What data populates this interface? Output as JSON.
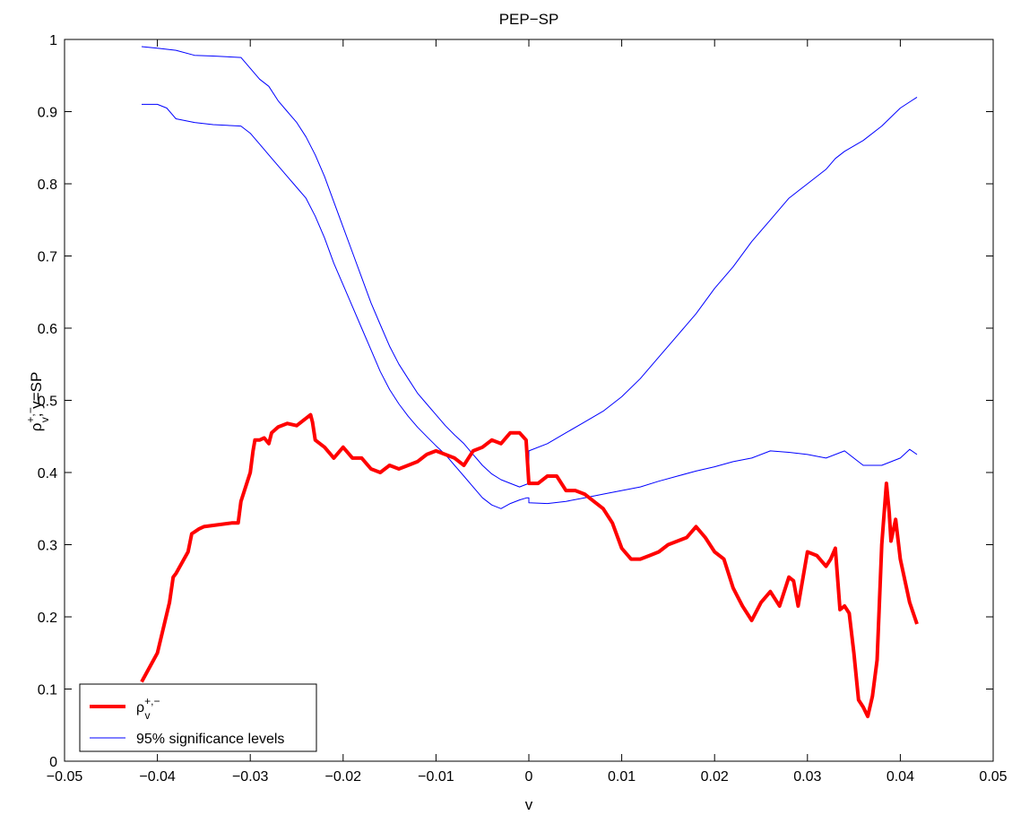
{
  "chart_data": {
    "type": "line",
    "title": "PEP−SP",
    "xlabel": "v",
    "ylabel": "ρv+,−, y=SP",
    "xlim": [
      -0.05,
      0.05
    ],
    "ylim": [
      0,
      1
    ],
    "xticks": [
      -0.05,
      -0.04,
      -0.03,
      -0.02,
      -0.01,
      0,
      0.01,
      0.02,
      0.03,
      0.04,
      0.05
    ],
    "xtick_labels": [
      "−0.05",
      "−0.04",
      "−0.03",
      "−0.02",
      "−0.01",
      "0",
      "0.01",
      "0.02",
      "0.03",
      "0.04",
      "0.05"
    ],
    "yticks": [
      0,
      0.1,
      0.2,
      0.3,
      0.4,
      0.5,
      0.6,
      0.7,
      0.8,
      0.9,
      1
    ],
    "ytick_labels": [
      "0",
      "0.1",
      "0.2",
      "0.3",
      "0.4",
      "0.5",
      "0.6",
      "0.7",
      "0.8",
      "0.9",
      "1"
    ],
    "grid": false,
    "legend_position": "bottom-left",
    "legend": [
      {
        "label": "ρv+,−",
        "color": "#ff0000",
        "style": "thick"
      },
      {
        "label": "95% significance levels",
        "color": "#0000ff",
        "style": "thin"
      }
    ],
    "series": [
      {
        "name": "ρv+,−",
        "color": "#ff0000",
        "x": [
          -0.0417,
          -0.04,
          -0.0387,
          -0.0383,
          -0.038,
          -0.0367,
          -0.0363,
          -0.0355,
          -0.035,
          -0.032,
          -0.0313,
          -0.031,
          -0.03,
          -0.0297,
          -0.0295,
          -0.029,
          -0.0285,
          -0.028,
          -0.0277,
          -0.027,
          -0.026,
          -0.025,
          -0.024,
          -0.0235,
          -0.0233,
          -0.023,
          -0.022,
          -0.021,
          -0.02,
          -0.019,
          -0.018,
          -0.017,
          -0.016,
          -0.015,
          -0.014,
          -0.013,
          -0.012,
          -0.011,
          -0.01,
          -0.009,
          -0.008,
          -0.007,
          -0.006,
          -0.005,
          -0.004,
          -0.003,
          -0.002,
          -0.001,
          -0.0003,
          0,
          0.001,
          0.002,
          0.003,
          0.004,
          0.005,
          0.006,
          0.007,
          0.008,
          0.009,
          0.01,
          0.011,
          0.012,
          0.013,
          0.014,
          0.015,
          0.016,
          0.017,
          0.018,
          0.019,
          0.02,
          0.021,
          0.022,
          0.023,
          0.024,
          0.025,
          0.026,
          0.027,
          0.028,
          0.0285,
          0.029,
          0.03,
          0.031,
          0.032,
          0.0325,
          0.033,
          0.0335,
          0.034,
          0.0345,
          0.035,
          0.0355,
          0.036,
          0.0365,
          0.037,
          0.0375,
          0.038,
          0.0385,
          0.0388,
          0.039,
          0.0395,
          0.04,
          0.041,
          0.0418
        ],
        "y": [
          0.11,
          0.15,
          0.22,
          0.255,
          0.26,
          0.29,
          0.315,
          0.322,
          0.325,
          0.33,
          0.33,
          0.36,
          0.4,
          0.43,
          0.445,
          0.445,
          0.448,
          0.44,
          0.455,
          0.463,
          0.468,
          0.465,
          0.475,
          0.48,
          0.47,
          0.445,
          0.435,
          0.42,
          0.435,
          0.42,
          0.42,
          0.405,
          0.4,
          0.41,
          0.405,
          0.41,
          0.415,
          0.425,
          0.43,
          0.425,
          0.42,
          0.41,
          0.43,
          0.435,
          0.445,
          0.44,
          0.455,
          0.455,
          0.445,
          0.385,
          0.385,
          0.395,
          0.395,
          0.375,
          0.375,
          0.37,
          0.36,
          0.35,
          0.33,
          0.295,
          0.28,
          0.28,
          0.285,
          0.29,
          0.3,
          0.305,
          0.31,
          0.325,
          0.31,
          0.29,
          0.28,
          0.24,
          0.215,
          0.195,
          0.22,
          0.235,
          0.215,
          0.255,
          0.25,
          0.215,
          0.29,
          0.285,
          0.27,
          0.28,
          0.295,
          0.21,
          0.215,
          0.205,
          0.15,
          0.085,
          0.075,
          0.062,
          0.09,
          0.14,
          0.3,
          0.385,
          0.345,
          0.305,
          0.335,
          0.28,
          0.22,
          0.19
        ]
      },
      {
        "name": "95% significance levels (upper)",
        "color": "#0000ff",
        "x": [
          -0.0417,
          -0.04,
          -0.038,
          -0.036,
          -0.034,
          -0.031,
          -0.03,
          -0.029,
          -0.028,
          -0.027,
          -0.026,
          -0.025,
          -0.024,
          -0.023,
          -0.022,
          -0.021,
          -0.02,
          -0.019,
          -0.018,
          -0.017,
          -0.016,
          -0.015,
          -0.014,
          -0.013,
          -0.012,
          -0.011,
          -0.01,
          -0.009,
          -0.008,
          -0.007,
          -0.006,
          -0.005,
          -0.004,
          -0.003,
          -0.002,
          -0.001,
          0,
          0,
          0.002,
          0.004,
          0.006,
          0.008,
          0.01,
          0.012,
          0.014,
          0.016,
          0.018,
          0.02,
          0.022,
          0.024,
          0.026,
          0.028,
          0.03,
          0.032,
          0.033,
          0.034,
          0.036,
          0.038,
          0.04,
          0.0418
        ],
        "y": [
          0.99,
          0.988,
          0.985,
          0.978,
          0.977,
          0.975,
          0.96,
          0.945,
          0.935,
          0.915,
          0.9,
          0.885,
          0.865,
          0.84,
          0.81,
          0.775,
          0.74,
          0.705,
          0.67,
          0.635,
          0.605,
          0.575,
          0.55,
          0.53,
          0.51,
          0.495,
          0.48,
          0.465,
          0.452,
          0.44,
          0.425,
          0.41,
          0.398,
          0.39,
          0.385,
          0.38,
          0.385,
          0.43,
          0.44,
          0.455,
          0.47,
          0.485,
          0.505,
          0.53,
          0.56,
          0.59,
          0.62,
          0.655,
          0.685,
          0.72,
          0.75,
          0.78,
          0.8,
          0.82,
          0.835,
          0.845,
          0.86,
          0.88,
          0.905,
          0.92
        ]
      },
      {
        "name": "95% significance levels (lower)",
        "color": "#0000ff",
        "x": [
          -0.0417,
          -0.04,
          -0.039,
          -0.038,
          -0.036,
          -0.034,
          -0.031,
          -0.03,
          -0.029,
          -0.028,
          -0.027,
          -0.026,
          -0.025,
          -0.024,
          -0.023,
          -0.022,
          -0.021,
          -0.02,
          -0.019,
          -0.018,
          -0.017,
          -0.016,
          -0.015,
          -0.014,
          -0.013,
          -0.012,
          -0.011,
          -0.01,
          -0.009,
          -0.008,
          -0.007,
          -0.006,
          -0.005,
          -0.004,
          -0.003,
          -0.002,
          -0.001,
          -0.0002,
          0,
          0,
          0.002,
          0.004,
          0.006,
          0.008,
          0.01,
          0.012,
          0.014,
          0.016,
          0.018,
          0.02,
          0.022,
          0.024,
          0.026,
          0.028,
          0.03,
          0.032,
          0.034,
          0.036,
          0.038,
          0.04,
          0.041,
          0.0418
        ],
        "y": [
          0.91,
          0.91,
          0.905,
          0.89,
          0.885,
          0.882,
          0.88,
          0.87,
          0.855,
          0.84,
          0.825,
          0.81,
          0.795,
          0.78,
          0.755,
          0.725,
          0.69,
          0.66,
          0.63,
          0.6,
          0.57,
          0.54,
          0.515,
          0.495,
          0.478,
          0.463,
          0.45,
          0.437,
          0.425,
          0.41,
          0.395,
          0.38,
          0.365,
          0.355,
          0.35,
          0.357,
          0.362,
          0.365,
          0.365,
          0.358,
          0.357,
          0.36,
          0.365,
          0.37,
          0.375,
          0.38,
          0.388,
          0.395,
          0.402,
          0.408,
          0.415,
          0.42,
          0.43,
          0.428,
          0.425,
          0.42,
          0.43,
          0.41,
          0.41,
          0.42,
          0.432,
          0.425
        ]
      }
    ]
  }
}
